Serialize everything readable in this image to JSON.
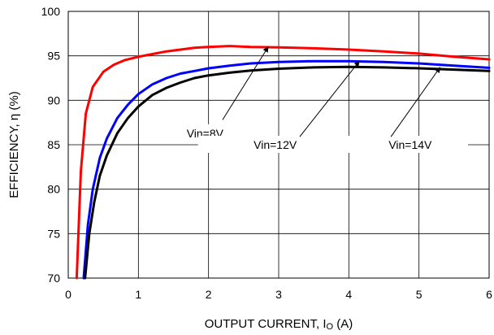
{
  "chart_data": {
    "type": "line",
    "xlabel": "OUTPUT CURRENT, I",
    "xlabel_subscript": "O",
    "xlabel_unit": " (A)",
    "ylabel": "EFFICIENCY, η   (%)",
    "xlim": [
      0,
      6
    ],
    "ylim": [
      70,
      100
    ],
    "xticks": [
      "0",
      "1",
      "2",
      "3",
      "4",
      "5",
      "6"
    ],
    "yticks": [
      "70",
      "75",
      "80",
      "85",
      "90",
      "95",
      "100"
    ],
    "grid": true,
    "legend": "none",
    "series": [
      {
        "name": "Vin=8V",
        "color": "#ff0000",
        "x": [
          0.12,
          0.18,
          0.25,
          0.35,
          0.5,
          0.65,
          0.8,
          1.0,
          1.2,
          1.4,
          1.6,
          1.8,
          2.0,
          2.3,
          2.6,
          3.0,
          3.5,
          4.0,
          4.5,
          5.0,
          5.5,
          6.0
        ],
        "y": [
          70.0,
          82.0,
          88.5,
          91.5,
          93.2,
          94.0,
          94.5,
          94.9,
          95.2,
          95.5,
          95.7,
          95.9,
          96.0,
          96.1,
          96.0,
          95.95,
          95.85,
          95.7,
          95.5,
          95.25,
          94.9,
          94.6
        ]
      },
      {
        "name": "Vin=12V",
        "color": "#0000ff",
        "x": [
          0.22,
          0.28,
          0.35,
          0.45,
          0.55,
          0.7,
          0.85,
          1.0,
          1.2,
          1.4,
          1.6,
          1.8,
          2.0,
          2.3,
          2.6,
          3.0,
          3.5,
          4.0,
          4.5,
          5.0,
          5.5,
          6.0
        ],
        "y": [
          70.0,
          76.0,
          80.0,
          83.5,
          85.7,
          88.0,
          89.5,
          90.7,
          91.8,
          92.5,
          93.0,
          93.3,
          93.6,
          93.9,
          94.15,
          94.3,
          94.4,
          94.4,
          94.3,
          94.15,
          93.9,
          93.65
        ]
      },
      {
        "name": "Vin=14V",
        "color": "#000000",
        "x": [
          0.24,
          0.3,
          0.37,
          0.45,
          0.55,
          0.7,
          0.85,
          1.0,
          1.2,
          1.4,
          1.6,
          1.8,
          2.0,
          2.3,
          2.6,
          3.0,
          3.5,
          4.0,
          4.5,
          5.0,
          5.5,
          6.0
        ],
        "y": [
          70.0,
          75.0,
          78.5,
          81.5,
          83.8,
          86.3,
          88.0,
          89.3,
          90.6,
          91.4,
          92.0,
          92.5,
          92.8,
          93.1,
          93.35,
          93.55,
          93.7,
          93.75,
          93.7,
          93.6,
          93.45,
          93.3
        ]
      }
    ],
    "annotations": [
      {
        "text": "Vin=8V",
        "series": "Vin=8V",
        "x_range": [
          1.55,
          2.35
        ],
        "y": 86.3,
        "arrow_from": [
          2.2,
          87.8
        ],
        "arrow_to": [
          2.85,
          96.0
        ]
      },
      {
        "text": "Vin=12V",
        "series": "Vin=12V",
        "x_range": [
          1.85,
          4.05
        ],
        "y": 85.0,
        "arrow_from": [
          3.3,
          85.9
        ],
        "arrow_to": [
          4.15,
          94.4
        ]
      },
      {
        "text": "Vin=14V",
        "series": "Vin=14V",
        "x_range": [
          4.05,
          5.7
        ],
        "y": 85.0,
        "arrow_from": [
          4.6,
          85.9
        ],
        "arrow_to": [
          5.3,
          93.7
        ]
      }
    ]
  }
}
